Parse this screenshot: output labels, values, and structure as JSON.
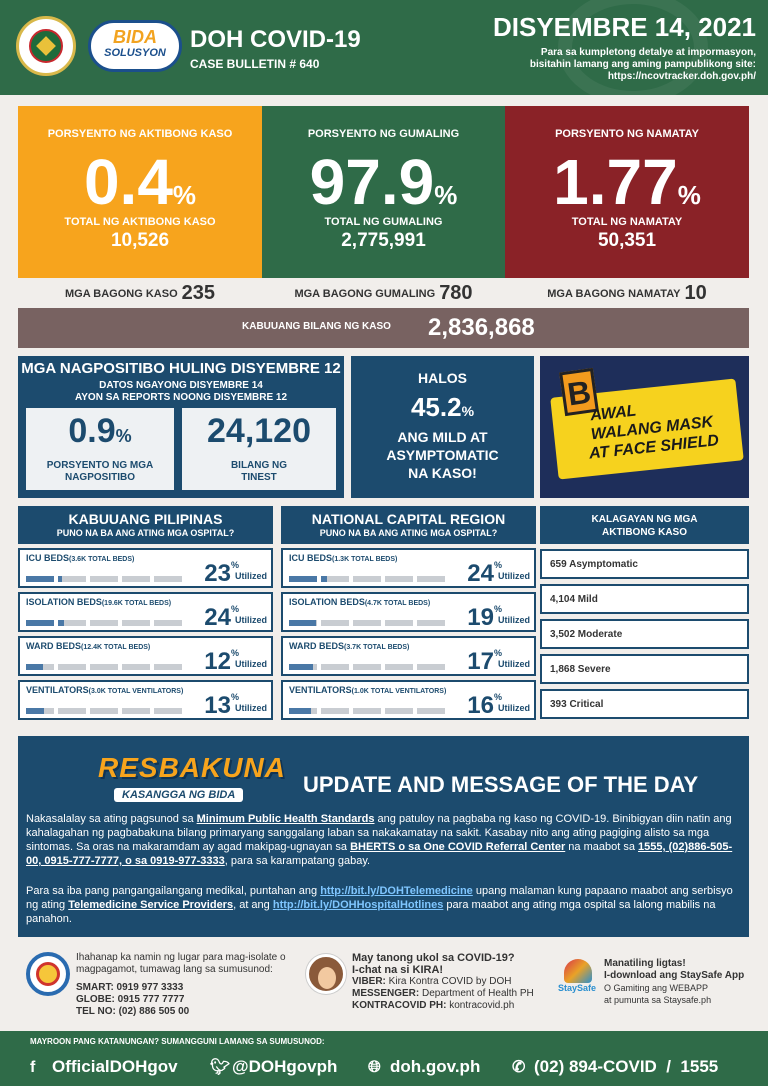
{
  "header": {
    "title": "DOH COVID-19",
    "bulletin": "CASE BULLETIN # 640",
    "date": "DISYEMBRE 14, 2021",
    "info_line1": "Para sa kumpletong detalye at impormasyon,",
    "info_line2": "bisitahin lamang ang aming pampublikong site:",
    "info_url": "https://ncovtracker.doh.gov.ph/",
    "bida_logo_text": "BIDA",
    "bida_logo_sub": "SOLUSYON"
  },
  "stats": {
    "active": {
      "label": "PORSYENTO NG AKTIBONG KASO",
      "pct": "0.4",
      "total_label": "TOTAL NG AKTIBONG KASO",
      "total": "10,526"
    },
    "recovered": {
      "label": "PORSYENTO NG GUMALING",
      "pct": "97.9",
      "total_label": "TOTAL NG GUMALING",
      "total": "2,775,991"
    },
    "deaths": {
      "label": "PORSYENTO NG NAMATAY",
      "pct": "1.77",
      "total_label": "TOTAL NG NAMATAY",
      "total": "50,351"
    },
    "pct_unit": "%"
  },
  "new": {
    "cases_label": "MGA BAGONG KASO",
    "cases": "235",
    "recovered_label": "MGA BAGONG GUMALING",
    "recovered": "780",
    "deaths_label": "MGA BAGONG NAMATAY",
    "deaths": "10"
  },
  "total": {
    "label": "KABUUANG BILANG NG KASO",
    "value": "2,836,868"
  },
  "positives": {
    "title": "MGA NAGPOSITIBO HULING DISYEMBRE 12",
    "sub1": "DATOS NGAYONG DISYEMBRE 14",
    "sub2": "AYON SA REPORTS NOONG DISYEMBRE 12",
    "rate": "0.9",
    "rate_unit": "%",
    "rate_label1": "PORSYENTO NG MGA",
    "rate_label2": "NAGPOSITIBO",
    "tested": "24,120",
    "tested_label1": "BILANG NG",
    "tested_label2": "TINEST"
  },
  "halos": {
    "a": "HALOS",
    "value": "45.2",
    "unit": "%",
    "c1": "ANG MILD AT",
    "c2": "ASYMPTOMATIC",
    "c3": "NA KASO!"
  },
  "mask": {
    "b": "B",
    "l1": "AWAL",
    "l2": "WALANG MASK",
    "l3": "AT FACE SHIELD"
  },
  "hospital": {
    "utilized": "Utilized",
    "unit": "%",
    "ph": {
      "title": "KABUUANG PILIPINAS",
      "sub": "PUNO NA BA ANG ATING MGA OSPITAL?",
      "rows": [
        {
          "label": "ICU BEDS",
          "detail": "(3.6K TOTAL BEDS)",
          "pct": "23",
          "fill": 23
        },
        {
          "label": "ISOLATION BEDS",
          "detail": "(19.6K TOTAL BEDS)",
          "pct": "24",
          "fill": 24
        },
        {
          "label": "WARD BEDS",
          "detail": "(12.4K TOTAL BEDS)",
          "pct": "12",
          "fill": 12
        },
        {
          "label": "VENTILATORS",
          "detail": "(3.0K TOTAL VENTILATORS)",
          "pct": "13",
          "fill": 13
        }
      ]
    },
    "ncr": {
      "title": "NATIONAL CAPITAL REGION",
      "sub": "PUNO NA BA ANG ATING MGA OSPITAL?",
      "rows": [
        {
          "label": "ICU BEDS",
          "detail": "(1.3K TOTAL BEDS)",
          "pct": "24",
          "fill": 24
        },
        {
          "label": "ISOLATION BEDS",
          "detail": "(4.7K TOTAL BEDS)",
          "pct": "19",
          "fill": 19
        },
        {
          "label": "WARD BEDS",
          "detail": "(3.7K TOTAL BEDS)",
          "pct": "17",
          "fill": 17
        },
        {
          "label": "VENTILATORS",
          "detail": "(1.0K TOTAL VENTILATORS)",
          "pct": "16",
          "fill": 16
        }
      ]
    }
  },
  "kalagayan": {
    "title1": "KALAGAYAN NG MGA",
    "title2": "AKTIBONG KASO",
    "items": [
      "659 Asymptomatic",
      "4,104 Mild",
      "3,502 Moderate",
      "1,868 Severe",
      "393 Critical"
    ]
  },
  "update": {
    "logo": "RESBAKUNA",
    "logo_sub": "KASANGGA NG BIDA",
    "title": "UPDATE AND MESSAGE OF THE DAY",
    "p1_a": "Nakasalalay sa ating pagsunod sa ",
    "p1_b": "Minimum Public Health Standards",
    "p1_c": " ang patuloy na pagbaba ng kaso ng COVID-19. Binibigyan diin natin ang kahalagahan ng pagbabakuna bilang primaryang sanggalang laban sa nakakamatay na sakit. Kasabay nito ang ating pagiging alisto sa mga sintomas. Sa oras na makaramdam ay agad makipag-ugnayan sa ",
    "p1_d": "BHERTS o sa One COVID Referral Center",
    "p1_e": " na maabot sa ",
    "p1_f": "1555, (02)886-505-00, 0915-777-7777, o sa 0919-977-3333",
    "p1_g": ", para sa karampatang gabay.",
    "p2_a": "Para sa iba pang pangangailangang medikal, puntahan ang ",
    "p2_b": "http://bit.ly/DOHTelemedicine",
    "p2_c": " upang malaman kung papaano maabot ang serbisyo ng ating ",
    "p2_d": "Telemedicine Service Providers",
    "p2_e": ", at ang ",
    "p2_f": "http://bit.ly/DOHHospitalHotlines",
    "p2_g": " para maabot ang ating mga ospital sa lalong mabilis na panahon."
  },
  "contacts": {
    "c1_line1": "Ihahanap ka namin ng lugar para mag-isolate o",
    "c1_line2": "magpagamot, tumawag lang sa sumusunod:",
    "smart": "SMART: 0919 977 3333",
    "globe": "GLOBE: 0915 777 7777",
    "tel": "TEL NO: (02) 886 505 00",
    "c2_line1": "May tanong ukol sa COVID-19?",
    "c2_line2": "I-chat na si KIRA!",
    "viber_label": "VIBER:",
    "viber": " Kira Kontra COVID by DOH",
    "messenger_label": "MESSENGER:",
    "messenger": " Department of Health PH",
    "kontra_label": "KONTRACOVID PH:",
    "kontra": " kontracovid.ph",
    "c3_line1": "Manatiling ligtas!",
    "c3_line2": "I-download ang StaySafe App",
    "c3_line3": "O Gamiting ang WEBAPP",
    "c3_line4": "at pumunta sa Staysafe.ph",
    "staysafe_label": "StaySafe"
  },
  "footer": {
    "question": "MAYROON PANG KATANUNGAN? SUMANGGUNI LAMANG SA SUMUSUNOD:",
    "facebook": "OfficialDOHgov",
    "twitter": "@DOHgovph",
    "web": "doh.gov.ph",
    "phone": "(02) 894-COVID  /  1555"
  },
  "colors": {
    "active": "#f7a41d",
    "recovered": "#2f6b48",
    "deaths": "#8a2227",
    "navy": "#1c4b6e",
    "total": "#786261"
  },
  "icons": [
    "doh-seal-icon",
    "bida-logo-icon",
    "facebook-icon",
    "twitter-icon",
    "globe-icon",
    "phone-icon",
    "ventilator-icon",
    "staysafe-icon",
    "kira-avatar-icon"
  ]
}
